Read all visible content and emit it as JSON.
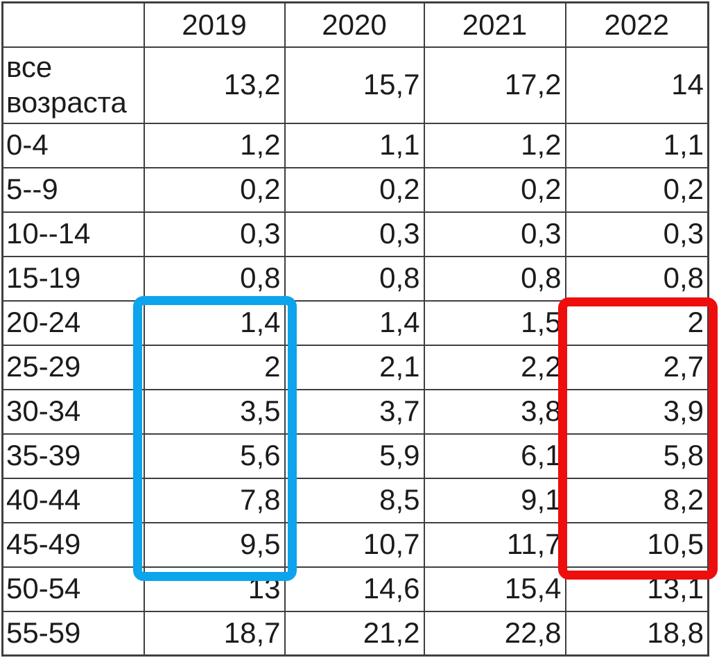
{
  "chart_data": {
    "type": "table",
    "title": "",
    "categories": [
      "все возраста",
      "0-4",
      "5--9",
      "10--14",
      "15-19",
      "20-24",
      "25-29",
      "30-34",
      "35-39",
      "40-44",
      "45-49",
      "50-54",
      "55-59"
    ],
    "columns": [
      "2019",
      "2020",
      "2021",
      "2022"
    ],
    "series": [
      {
        "name": "2019",
        "values": [
          13.2,
          1.2,
          0.2,
          0.3,
          0.8,
          1.4,
          2,
          3.5,
          5.6,
          7.8,
          9.5,
          13,
          18.7
        ]
      },
      {
        "name": "2020",
        "values": [
          15.7,
          1.1,
          0.2,
          0.3,
          0.8,
          1.4,
          2.1,
          3.7,
          5.9,
          8.5,
          10.7,
          14.6,
          21.2
        ]
      },
      {
        "name": "2021",
        "values": [
          17.2,
          1.2,
          0.2,
          0.3,
          0.8,
          1.5,
          2.2,
          3.8,
          6.1,
          9.1,
          11.7,
          15.4,
          22.8
        ]
      },
      {
        "name": "2022",
        "values": [
          14,
          1.1,
          0.2,
          0.3,
          0.8,
          2,
          2.7,
          3.9,
          5.8,
          8.2,
          10.5,
          13.1,
          18.8
        ]
      }
    ],
    "annotations": [
      {
        "shape": "rounded-rectangle",
        "color": "#0ca4ec",
        "covers": "2019 column, rows 20-24 through 45-49"
      },
      {
        "shape": "rounded-rectangle",
        "color": "#ee0e0e",
        "covers": "2022 column, rows 20-24 through 45-49"
      }
    ]
  },
  "table": {
    "headers": [
      "",
      "2019",
      "2020",
      "2021",
      "2022"
    ],
    "rows": [
      {
        "label": "все возраста",
        "values": [
          "13,2",
          "15,7",
          "17,2",
          "14"
        ]
      },
      {
        "label": "0-4",
        "values": [
          "1,2",
          "1,1",
          "1,2",
          "1,1"
        ]
      },
      {
        "label": "5--9",
        "values": [
          "0,2",
          "0,2",
          "0,2",
          "0,2"
        ]
      },
      {
        "label": "10--14",
        "values": [
          "0,3",
          "0,3",
          "0,3",
          "0,3"
        ]
      },
      {
        "label": "15-19",
        "values": [
          "0,8",
          "0,8",
          "0,8",
          "0,8"
        ]
      },
      {
        "label": "20-24",
        "values": [
          "1,4",
          "1,4",
          "1,5",
          "2"
        ]
      },
      {
        "label": "25-29",
        "values": [
          "2",
          "2,1",
          "2,2",
          "2,7"
        ]
      },
      {
        "label": "30-34",
        "values": [
          "3,5",
          "3,7",
          "3,8",
          "3,9"
        ]
      },
      {
        "label": "35-39",
        "values": [
          "5,6",
          "5,9",
          "6,1",
          "5,8"
        ]
      },
      {
        "label": "40-44",
        "values": [
          "7,8",
          "8,5",
          "9,1",
          "8,2"
        ]
      },
      {
        "label": "45-49",
        "values": [
          "9,5",
          "10,7",
          "11,7",
          "10,5"
        ]
      },
      {
        "label": "50-54",
        "values": [
          "13",
          "14,6",
          "15,4",
          "13,1"
        ]
      },
      {
        "label": "55-59",
        "values": [
          "18,7",
          "21,2",
          "22,8",
          "18,8"
        ]
      }
    ]
  },
  "annotations": {
    "blue_box": {
      "color": "#0ca4ec"
    },
    "red_box": {
      "color": "#ee0e0e"
    }
  }
}
